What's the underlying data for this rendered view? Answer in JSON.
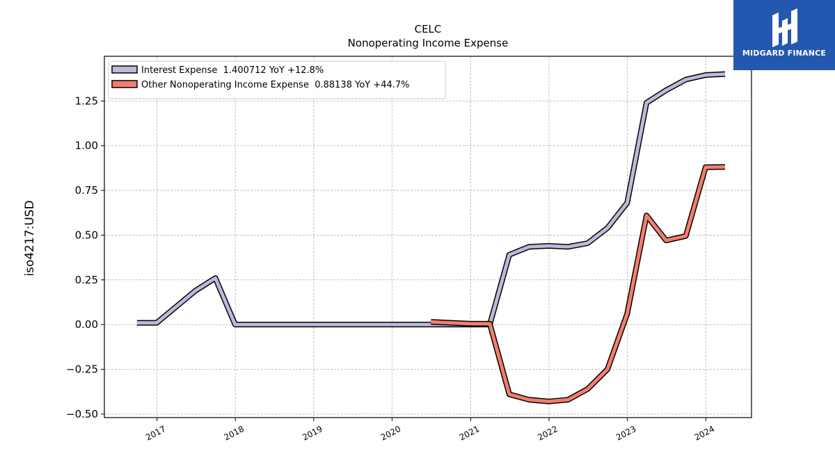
{
  "brand": {
    "name": "MIDGARD FINANCE",
    "bg_color": "#2457b0"
  },
  "chart_data": {
    "type": "line",
    "title": "CELC",
    "subtitle": "Nonoperating Income Expense",
    "ylabel": "iso4217:USD",
    "xlabel": "",
    "xlim": [
      "2016-05-01",
      "2024-08-01"
    ],
    "ylim": [
      -0.52,
      1.5
    ],
    "xticks": [
      "2017",
      "2018",
      "2019",
      "2020",
      "2021",
      "2022",
      "2023",
      "2024"
    ],
    "yticks": [
      "−0.50",
      "−0.25",
      "0.00",
      "0.25",
      "0.50",
      "0.75",
      "1.00",
      "1.25"
    ],
    "grid": true,
    "legend_position": "top-left",
    "series": [
      {
        "name": "Interest Expense  1.400712 YoY +12.8%",
        "color": "#bcbad9",
        "points": [
          [
            "2016-09-30",
            0.01
          ],
          [
            "2016-12-31",
            0.01
          ],
          [
            "2017-06-30",
            0.19
          ],
          [
            "2017-09-30",
            0.26
          ],
          [
            "2017-12-31",
            0.0
          ],
          [
            "2018-12-31",
            0.0
          ],
          [
            "2019-12-31",
            0.0
          ],
          [
            "2020-12-31",
            0.0
          ],
          [
            "2021-03-31",
            0.0
          ],
          [
            "2021-06-30",
            0.39
          ],
          [
            "2021-09-30",
            0.435
          ],
          [
            "2021-12-31",
            0.44
          ],
          [
            "2022-03-31",
            0.435
          ],
          [
            "2022-06-30",
            0.455
          ],
          [
            "2022-09-30",
            0.54
          ],
          [
            "2022-12-31",
            0.68
          ],
          [
            "2023-03-31",
            1.24
          ],
          [
            "2023-06-30",
            1.31
          ],
          [
            "2023-09-30",
            1.37
          ],
          [
            "2023-12-31",
            1.395
          ],
          [
            "2024-03-31",
            1.400712
          ]
        ]
      },
      {
        "name": "Other Nonoperating Income Expense  0.88138 YoY +44.7%",
        "color": "#f47d6e",
        "points": [
          [
            "2020-06-30",
            0.015
          ],
          [
            "2020-12-31",
            0.005
          ],
          [
            "2021-03-31",
            0.005
          ],
          [
            "2021-06-30",
            -0.39
          ],
          [
            "2021-09-30",
            -0.42
          ],
          [
            "2021-12-31",
            -0.43
          ],
          [
            "2022-03-31",
            -0.42
          ],
          [
            "2022-06-30",
            -0.36
          ],
          [
            "2022-09-30",
            -0.25
          ],
          [
            "2022-12-31",
            0.06
          ],
          [
            "2023-03-31",
            0.61
          ],
          [
            "2023-06-30",
            0.47
          ],
          [
            "2023-09-30",
            0.495
          ],
          [
            "2023-12-31",
            0.88
          ],
          [
            "2024-03-31",
            0.88138
          ]
        ]
      }
    ]
  }
}
